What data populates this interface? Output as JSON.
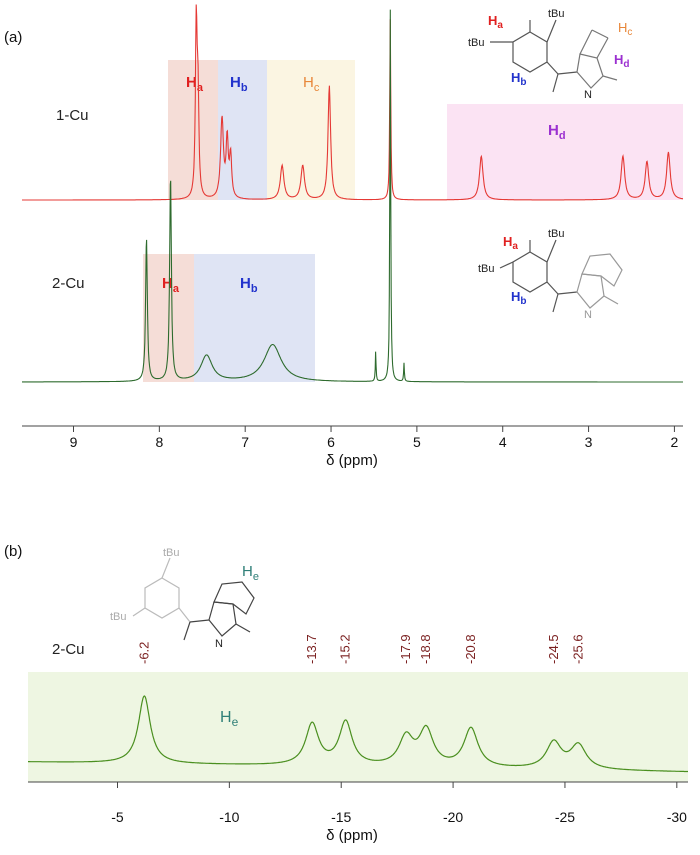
{
  "panels": {
    "a": {
      "label": "(a)",
      "trace_labels": [
        "1-Cu",
        "2-Cu"
      ],
      "x_axis_title": "δ (ppm)",
      "regions_1cu": [
        {
          "H": "H",
          "sub": "a",
          "color": "#e02020"
        },
        {
          "H": "H",
          "sub": "b",
          "color": "#2233cc"
        },
        {
          "H": "H",
          "sub": "c",
          "color": "#e8873a"
        },
        {
          "H": "H",
          "sub": "d",
          "color": "#9b30d0"
        }
      ],
      "regions_2cu": [
        {
          "H": "H",
          "sub": "a",
          "color": "#e02020"
        },
        {
          "H": "H",
          "sub": "b",
          "color": "#2233cc"
        }
      ],
      "molecule_1cu": {
        "substituents": [
          "tBu",
          "tBu",
          "N"
        ],
        "H_labels": [
          {
            "H": "H",
            "sub": "a",
            "color": "#e02020"
          },
          {
            "H": "H",
            "sub": "b",
            "color": "#2233cc"
          },
          {
            "H": "H",
            "sub": "c",
            "color": "#e8873a"
          },
          {
            "H": "H",
            "sub": "d",
            "color": "#9b30d0"
          }
        ]
      },
      "molecule_2cu": {
        "substituents": [
          "tBu",
          "tBu",
          "N"
        ],
        "H_labels": [
          {
            "H": "H",
            "sub": "a",
            "color": "#e02020"
          },
          {
            "H": "H",
            "sub": "b",
            "color": "#2233cc"
          }
        ]
      }
    },
    "b": {
      "label": "(b)",
      "trace_label": "2-Cu",
      "x_axis_title": "δ (ppm)",
      "region": {
        "H": "H",
        "sub": "e",
        "color": "#2f7f78"
      },
      "peak_labels": [
        "-6.2",
        "-13.7",
        "-15.2",
        "-17.9",
        "-18.8",
        "-20.8",
        "-24.5",
        "-25.6"
      ],
      "molecule": {
        "substituents": [
          "tBu",
          "tBu",
          "N"
        ],
        "H_label": {
          "H": "H",
          "sub": "e",
          "color": "#2f7f78"
        }
      }
    }
  },
  "chart_data": [
    {
      "type": "line",
      "panel": "(a)",
      "xlabel": "δ (ppm)",
      "xlim": [
        9.6,
        1.9
      ],
      "x_reversed": true,
      "x_ticks": [
        9,
        8,
        7,
        6,
        5,
        4,
        3,
        2
      ],
      "grid": false,
      "series": [
        {
          "name": "1-Cu",
          "color": "#e53935",
          "peaks": [
            {
              "x": 7.57,
              "height": 0.9,
              "width": 0.012
            },
            {
              "x": 7.55,
              "height": 0.5,
              "width": 0.012
            },
            {
              "x": 7.27,
              "height": 0.42,
              "width": 0.02
            },
            {
              "x": 7.21,
              "height": 0.3,
              "width": 0.015
            },
            {
              "x": 7.17,
              "height": 0.22,
              "width": 0.015
            },
            {
              "x": 6.57,
              "height": 0.18,
              "width": 0.025
            },
            {
              "x": 6.33,
              "height": 0.18,
              "width": 0.025
            },
            {
              "x": 6.02,
              "height": 0.6,
              "width": 0.018
            },
            {
              "x": 5.31,
              "height": 0.95,
              "width": 0.007
            },
            {
              "x": 4.25,
              "height": 0.23,
              "width": 0.025
            },
            {
              "x": 2.6,
              "height": 0.23,
              "width": 0.025
            },
            {
              "x": 2.32,
              "height": 0.2,
              "width": 0.025
            },
            {
              "x": 2.07,
              "height": 0.25,
              "width": 0.025
            }
          ]
        },
        {
          "name": "2-Cu",
          "color": "#2e6b2e",
          "peaks": [
            {
              "x": 8.15,
              "height": 0.39,
              "width": 0.012
            },
            {
              "x": 7.87,
              "height": 0.56,
              "width": 0.012
            },
            {
              "x": 7.45,
              "height": 0.07,
              "width": 0.08
            },
            {
              "x": 6.68,
              "height": 0.1,
              "width": 0.12
            },
            {
              "x": 5.48,
              "height": 0.08,
              "width": 0.005
            },
            {
              "x": 5.31,
              "height": 1.0,
              "width": 0.006
            },
            {
              "x": 5.15,
              "height": 0.05,
              "width": 0.005
            }
          ]
        }
      ],
      "shaded_regions": [
        {
          "series": "1-Cu",
          "label": "Ha",
          "x_from": 7.98,
          "x_to": 7.4,
          "color": "#f5ddd7"
        },
        {
          "series": "1-Cu",
          "label": "Hb",
          "x_from": 7.4,
          "x_to": 6.82,
          "color": "#dfe4f4"
        },
        {
          "series": "1-Cu",
          "label": "Hc",
          "x_from": 6.82,
          "x_to": 5.8,
          "color": "#fbf5e2"
        },
        {
          "series": "1-Cu",
          "label": "Hd",
          "x_from": 4.7,
          "x_to": 1.9,
          "color": "#fbe3f3"
        },
        {
          "series": "2-Cu",
          "label": "Ha",
          "x_from": 8.28,
          "x_to": 7.68,
          "color": "#f5ddd7"
        },
        {
          "series": "2-Cu",
          "label": "Hb",
          "x_from": 7.68,
          "x_to": 6.25,
          "color": "#dfe4f4"
        }
      ]
    },
    {
      "type": "line",
      "panel": "(b)",
      "xlabel": "δ (ppm)",
      "xlim": [
        -1,
        -30.5
      ],
      "x_reversed": true,
      "x_ticks": [
        -5,
        -10,
        -15,
        -20,
        -25,
        -30
      ],
      "grid": false,
      "series": [
        {
          "name": "2-Cu",
          "color": "#4a8f1f",
          "peaks": [
            {
              "x": -6.2,
              "height": 0.9,
              "width": 0.32
            },
            {
              "x": -13.7,
              "height": 0.55,
              "width": 0.35
            },
            {
              "x": -15.2,
              "height": 0.58,
              "width": 0.35
            },
            {
              "x": -17.9,
              "height": 0.38,
              "width": 0.38
            },
            {
              "x": -18.8,
              "height": 0.48,
              "width": 0.38
            },
            {
              "x": -20.8,
              "height": 0.52,
              "width": 0.38
            },
            {
              "x": -24.5,
              "height": 0.35,
              "width": 0.4
            },
            {
              "x": -25.6,
              "height": 0.32,
              "width": 0.42
            }
          ]
        }
      ],
      "shaded_regions": [
        {
          "series": "2-Cu",
          "label": "He",
          "x_from": -1,
          "x_to": -30.5,
          "color": "#eef6e2"
        }
      ]
    }
  ]
}
